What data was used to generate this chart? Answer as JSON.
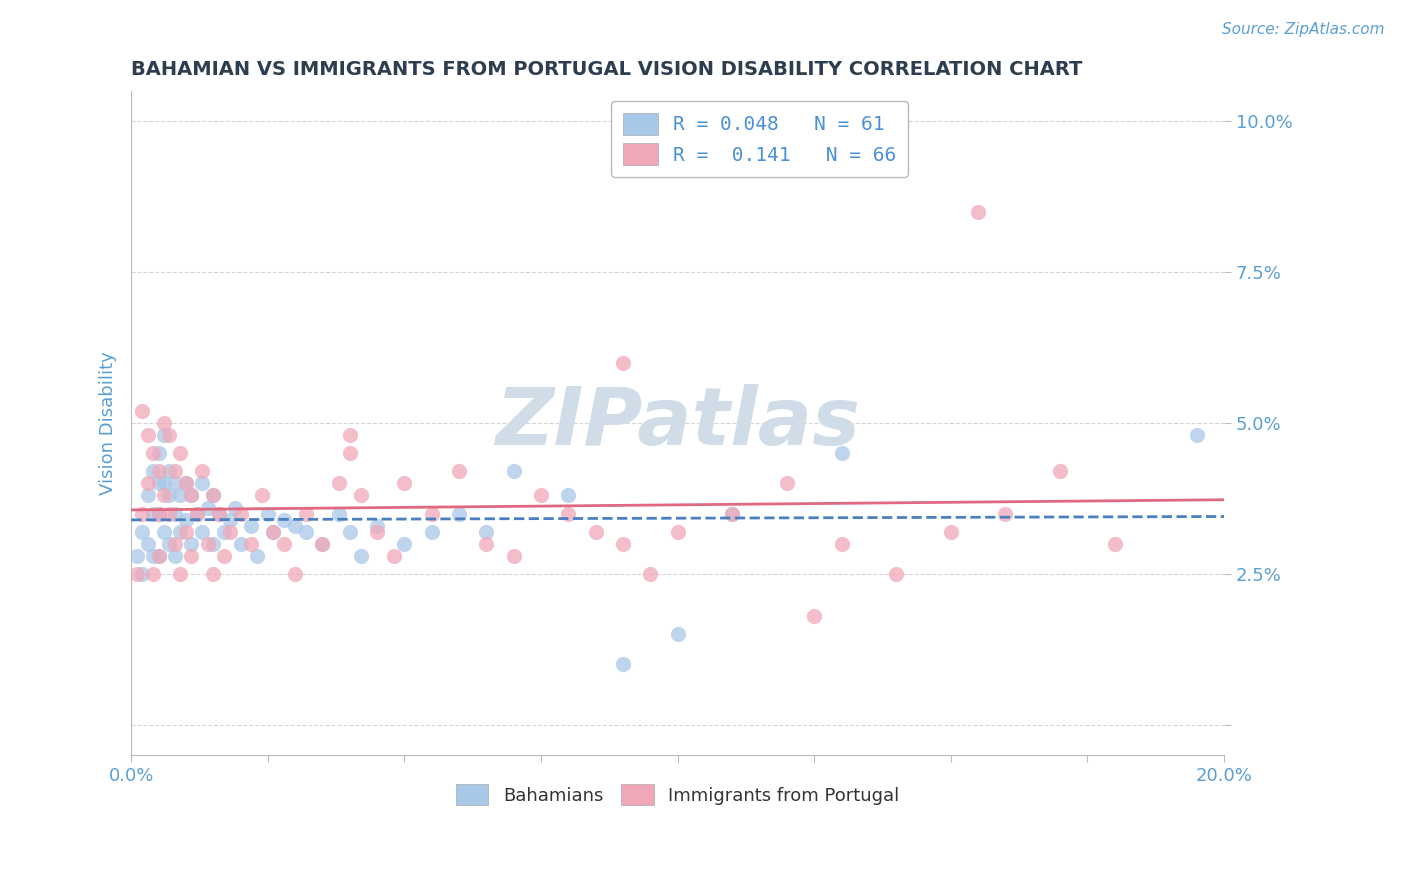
{
  "title": "BAHAMIAN VS IMMIGRANTS FROM PORTUGAL VISION DISABILITY CORRELATION CHART",
  "source_text": "Source: ZipAtlas.com",
  "ylabel": "Vision Disability",
  "xlim": [
    0.0,
    0.2
  ],
  "ylim": [
    -0.005,
    0.105
  ],
  "yticks": [
    0.0,
    0.025,
    0.05,
    0.075,
    0.1
  ],
  "ytick_labels": [
    "",
    "2.5%",
    "5.0%",
    "7.5%",
    "10.0%"
  ],
  "xticks": [
    0.0,
    0.025,
    0.05,
    0.075,
    0.1,
    0.125,
    0.15,
    0.175,
    0.2
  ],
  "xtick_labels": [
    "0.0%",
    "",
    "",
    "",
    "",
    "",
    "",
    "",
    "20.0%"
  ],
  "series": [
    {
      "name": "Bahamians",
      "R": 0.048,
      "N": 61,
      "color": "#a8c8e8",
      "line_color": "#4a7fc0",
      "line_style": "dashed",
      "x": [
        0.001,
        0.002,
        0.002,
        0.003,
        0.003,
        0.004,
        0.004,
        0.004,
        0.005,
        0.005,
        0.005,
        0.005,
        0.006,
        0.006,
        0.006,
        0.007,
        0.007,
        0.007,
        0.008,
        0.008,
        0.008,
        0.009,
        0.009,
        0.01,
        0.01,
        0.011,
        0.011,
        0.012,
        0.013,
        0.013,
        0.014,
        0.015,
        0.015,
        0.016,
        0.017,
        0.018,
        0.019,
        0.02,
        0.022,
        0.023,
        0.025,
        0.026,
        0.028,
        0.03,
        0.032,
        0.035,
        0.038,
        0.04,
        0.042,
        0.045,
        0.05,
        0.055,
        0.06,
        0.065,
        0.07,
        0.08,
        0.09,
        0.1,
        0.11,
        0.13,
        0.195
      ],
      "y": [
        0.028,
        0.032,
        0.025,
        0.038,
        0.03,
        0.042,
        0.035,
        0.028,
        0.045,
        0.04,
        0.035,
        0.028,
        0.048,
        0.04,
        0.032,
        0.042,
        0.038,
        0.03,
        0.04,
        0.035,
        0.028,
        0.038,
        0.032,
        0.04,
        0.034,
        0.038,
        0.03,
        0.035,
        0.04,
        0.032,
        0.036,
        0.038,
        0.03,
        0.035,
        0.032,
        0.034,
        0.036,
        0.03,
        0.033,
        0.028,
        0.035,
        0.032,
        0.034,
        0.033,
        0.032,
        0.03,
        0.035,
        0.032,
        0.028,
        0.033,
        0.03,
        0.032,
        0.035,
        0.032,
        0.042,
        0.038,
        0.01,
        0.015,
        0.035,
        0.045,
        0.048
      ]
    },
    {
      "name": "Immigrants from Portugal",
      "R": 0.141,
      "N": 66,
      "color": "#f0a8b8",
      "line_color": "#e06880",
      "line_style": "solid",
      "x": [
        0.001,
        0.002,
        0.002,
        0.003,
        0.003,
        0.004,
        0.004,
        0.005,
        0.005,
        0.005,
        0.006,
        0.006,
        0.007,
        0.007,
        0.008,
        0.008,
        0.009,
        0.009,
        0.01,
        0.01,
        0.011,
        0.011,
        0.012,
        0.013,
        0.014,
        0.015,
        0.015,
        0.016,
        0.017,
        0.018,
        0.02,
        0.022,
        0.024,
        0.026,
        0.028,
        0.03,
        0.032,
        0.035,
        0.038,
        0.04,
        0.042,
        0.045,
        0.048,
        0.05,
        0.055,
        0.06,
        0.065,
        0.07,
        0.075,
        0.08,
        0.085,
        0.09,
        0.095,
        0.1,
        0.11,
        0.12,
        0.13,
        0.14,
        0.15,
        0.16,
        0.17,
        0.18,
        0.125,
        0.155,
        0.09,
        0.04
      ],
      "y": [
        0.025,
        0.052,
        0.035,
        0.048,
        0.04,
        0.045,
        0.025,
        0.042,
        0.035,
        0.028,
        0.05,
        0.038,
        0.048,
        0.035,
        0.042,
        0.03,
        0.045,
        0.025,
        0.04,
        0.032,
        0.038,
        0.028,
        0.035,
        0.042,
        0.03,
        0.038,
        0.025,
        0.035,
        0.028,
        0.032,
        0.035,
        0.03,
        0.038,
        0.032,
        0.03,
        0.025,
        0.035,
        0.03,
        0.04,
        0.045,
        0.038,
        0.032,
        0.028,
        0.04,
        0.035,
        0.042,
        0.03,
        0.028,
        0.038,
        0.035,
        0.032,
        0.03,
        0.025,
        0.032,
        0.035,
        0.04,
        0.03,
        0.025,
        0.032,
        0.035,
        0.042,
        0.03,
        0.018,
        0.085,
        0.06,
        0.048
      ]
    }
  ],
  "watermark": "ZIPatlas",
  "watermark_color": "#d0dce8",
  "background_color": "#ffffff",
  "grid_color": "#cccccc",
  "title_color": "#2c3e50",
  "axis_label_color": "#5a9fd4",
  "tick_color": "#5a9fd4",
  "legend_R_color": "#4a90d9",
  "legend_label_color": "#333333",
  "figsize": [
    14.06,
    8.92
  ],
  "dpi": 100
}
